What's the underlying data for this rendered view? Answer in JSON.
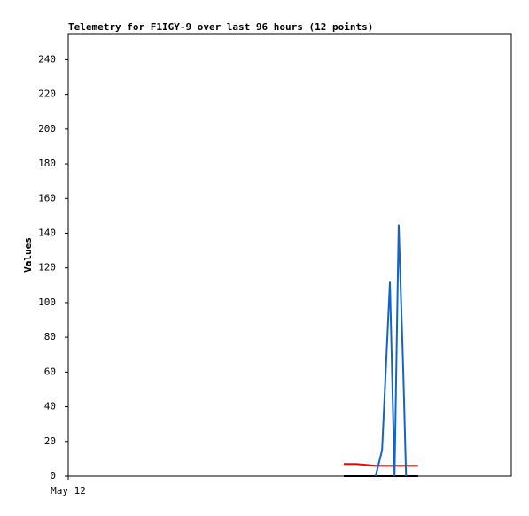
{
  "chart_data": {
    "type": "line",
    "title": "Telemetry for F1IGY-9 over last 96 hours (12 points)",
    "y_label": "Values",
    "x": [
      59.7,
      62.4,
      66.6,
      68.0,
      69.7,
      70.7,
      71.6,
      72.6,
      73.2,
      74.3,
      75.1,
      75.8
    ],
    "xlim": [
      0,
      96
    ],
    "xticks": [
      {
        "value": 0,
        "label": "May 12"
      }
    ],
    "ylim": [
      0,
      255
    ],
    "yticks": [
      0,
      20,
      40,
      60,
      80,
      100,
      120,
      140,
      160,
      180,
      200,
      220,
      240
    ],
    "series": [
      {
        "color": "#ff0000",
        "values": [
          7,
          7,
          6,
          6,
          6,
          6,
          6,
          6,
          6,
          6,
          6,
          6
        ]
      },
      {
        "color": "#000000",
        "values": [
          0,
          0,
          0,
          0,
          0,
          0,
          0,
          0,
          0,
          0,
          0,
          0
        ]
      },
      {
        "color": "#1464c8",
        "values": [
          null,
          null,
          0,
          15,
          112,
          0,
          145,
          60,
          0,
          null,
          null,
          null
        ]
      }
    ]
  }
}
